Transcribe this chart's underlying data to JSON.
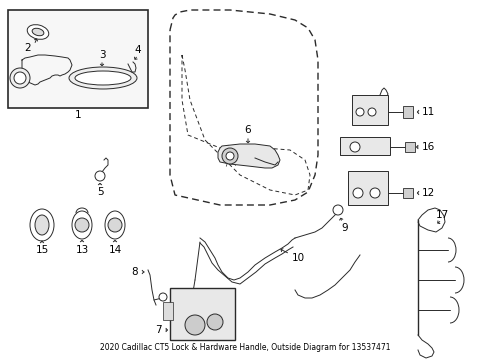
{
  "title": "2020 Cadillac CT5 Lock & Hardware Handle, Outside Diagram for 13537471",
  "bg_color": "#ffffff",
  "line_color": "#2a2a2a",
  "label_color": "#000000",
  "fig_width": 4.9,
  "fig_height": 3.6,
  "dpi": 100
}
